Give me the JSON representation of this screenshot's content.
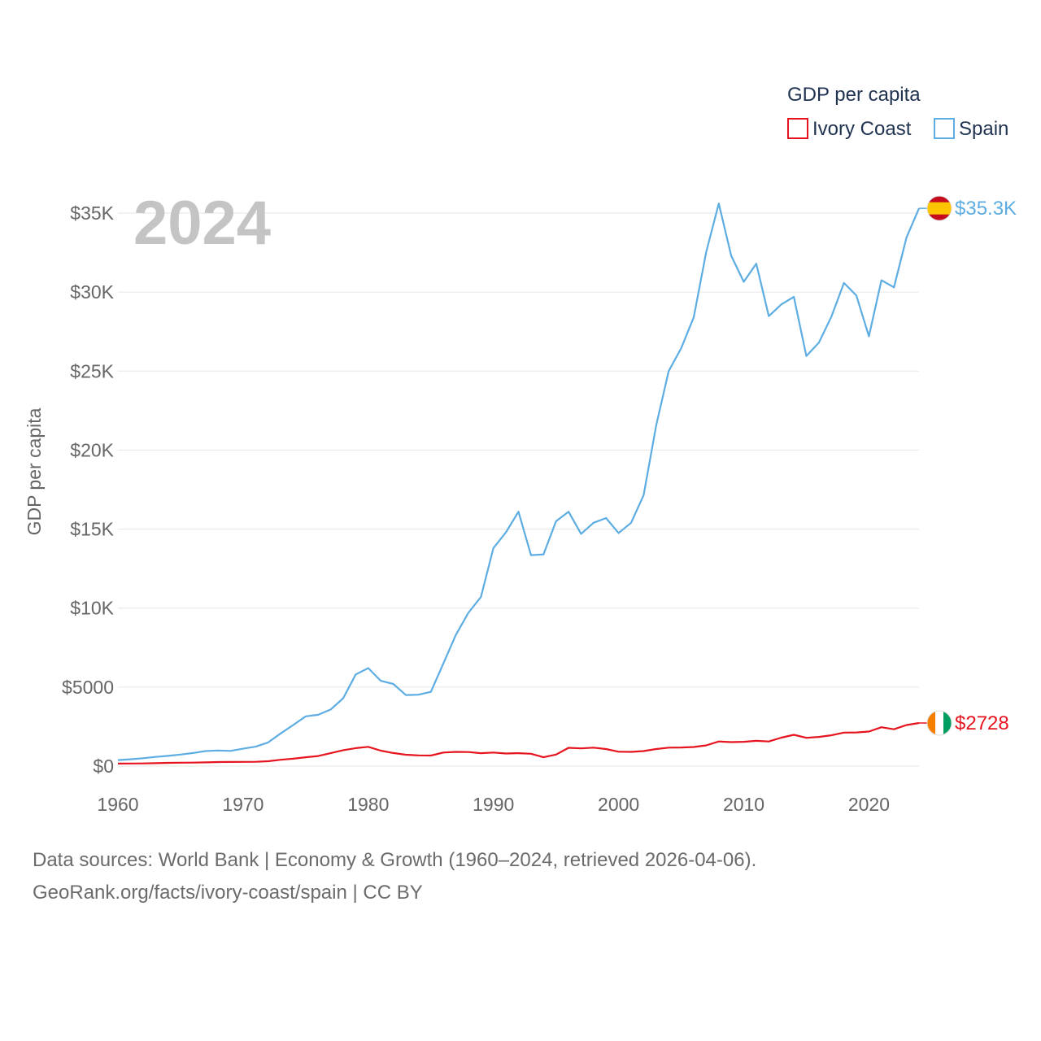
{
  "chart_data": {
    "type": "line",
    "title": "GDP per capita",
    "ylabel": "GDP per capita",
    "xlabel": "",
    "current_year": "2024",
    "xlim": [
      1960,
      2024
    ],
    "ylim": [
      0,
      36000
    ],
    "x_ticks": [
      1960,
      1970,
      1980,
      1990,
      2000,
      2010,
      2020
    ],
    "x_tick_labels": [
      "1960",
      "1970",
      "1980",
      "1990",
      "2000",
      "2010",
      "2020"
    ],
    "y_ticks": [
      0,
      5000,
      10000,
      15000,
      20000,
      25000,
      30000,
      35000
    ],
    "y_tick_labels": [
      "$0",
      "$5000",
      "$10K",
      "$15K",
      "$20K",
      "$25K",
      "$30K",
      "$35K"
    ],
    "legend_title": "GDP per capita",
    "legend_position": "top-right",
    "grid": true,
    "x": [
      1960,
      1961,
      1962,
      1963,
      1964,
      1965,
      1966,
      1967,
      1968,
      1969,
      1970,
      1971,
      1972,
      1973,
      1974,
      1975,
      1976,
      1977,
      1978,
      1979,
      1980,
      1981,
      1982,
      1983,
      1984,
      1985,
      1986,
      1987,
      1988,
      1989,
      1990,
      1991,
      1992,
      1993,
      1994,
      1995,
      1996,
      1997,
      1998,
      1999,
      2000,
      2001,
      2002,
      2003,
      2004,
      2005,
      2006,
      2007,
      2008,
      2009,
      2010,
      2011,
      2012,
      2013,
      2014,
      2015,
      2016,
      2017,
      2018,
      2019,
      2020,
      2021,
      2022,
      2023,
      2024
    ],
    "series": [
      {
        "name": "Ivory Coast",
        "color": "#e6141e",
        "end_label": "$2728",
        "flag": "ivory-coast",
        "values": [
          160,
          165,
          170,
          185,
          205,
          215,
          220,
          235,
          255,
          265,
          270,
          275,
          310,
          400,
          470,
          560,
          640,
          820,
          1010,
          1140,
          1220,
          980,
          830,
          720,
          680,
          670,
          860,
          900,
          890,
          820,
          860,
          800,
          820,
          780,
          560,
          730,
          1160,
          1120,
          1170,
          1080,
          910,
          900,
          950,
          1080,
          1170,
          1180,
          1210,
          1310,
          1560,
          1520,
          1540,
          1600,
          1560,
          1800,
          1980,
          1790,
          1850,
          1950,
          2120,
          2130,
          2190,
          2460,
          2330,
          2600,
          2728
        ]
      },
      {
        "name": "Spain",
        "color": "#5dade2",
        "end_label": "$35.3K",
        "flag": "spain",
        "values": [
          380,
          430,
          500,
          580,
          650,
          730,
          830,
          950,
          990,
          960,
          1100,
          1230,
          1500,
          2070,
          2600,
          3150,
          3250,
          3580,
          4300,
          5800,
          6200,
          5400,
          5200,
          4500,
          4520,
          4700,
          6500,
          8300,
          9700,
          10700,
          13800,
          14800,
          16100,
          13350,
          13400,
          15500,
          16100,
          14700,
          15400,
          15700,
          14750,
          15400,
          17150,
          21550,
          25000,
          26450,
          28400,
          32550,
          35600,
          32300,
          30650,
          31800,
          28480,
          29220,
          29700,
          25950,
          26800,
          28450,
          30580,
          29780,
          27200,
          30750,
          30300,
          33450,
          35300
        ]
      }
    ]
  },
  "footer": {
    "line1": "Data sources: World Bank | Economy & Growth (1960–2024, retrieved 2026-04-06).",
    "line2": "GeoRank.org/facts/ivory-coast/spain | CC BY"
  }
}
